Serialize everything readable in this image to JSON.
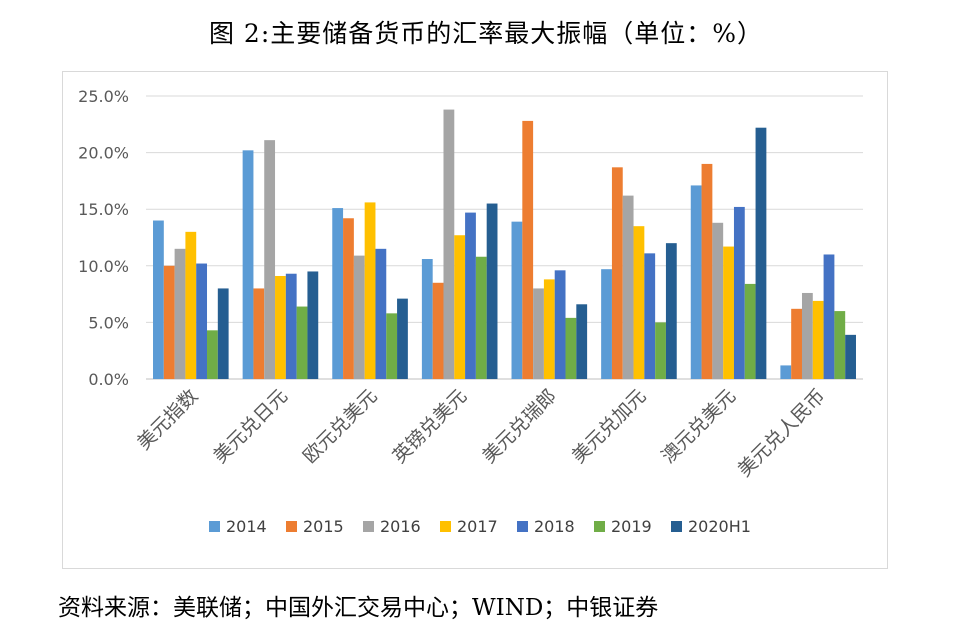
{
  "title": "图 2:主要储备货币的汇率最大振幅（单位：%）",
  "source": "资料来源：美联储；中国外汇交易中心；WIND；中银证券",
  "chart_data": {
    "type": "bar",
    "categories": [
      "美元指数",
      "美元兑日元",
      "欧元兑美元",
      "英镑兑美元",
      "美元兑瑞郎",
      "美元兑加元",
      "澳元兑美元",
      "美元兑人民币"
    ],
    "series": [
      {
        "name": "2014",
        "color": "#5b9bd5",
        "values": [
          14.0,
          20.2,
          15.1,
          10.6,
          13.9,
          9.7,
          17.1,
          1.2
        ]
      },
      {
        "name": "2015",
        "color": "#ed7d31",
        "values": [
          10.0,
          8.0,
          14.2,
          8.5,
          22.8,
          18.7,
          19.0,
          6.2
        ]
      },
      {
        "name": "2016",
        "color": "#a5a5a5",
        "values": [
          11.5,
          21.1,
          10.9,
          23.8,
          8.0,
          16.2,
          13.8,
          7.6
        ]
      },
      {
        "name": "2017",
        "color": "#ffc000",
        "values": [
          13.0,
          9.1,
          15.6,
          12.7,
          8.8,
          13.5,
          11.7,
          6.9
        ]
      },
      {
        "name": "2018",
        "color": "#4472c4",
        "values": [
          10.2,
          9.3,
          11.5,
          14.7,
          9.6,
          11.1,
          15.2,
          11.0
        ]
      },
      {
        "name": "2019",
        "color": "#70ad47",
        "values": [
          4.3,
          6.4,
          5.8,
          10.8,
          5.4,
          5.0,
          8.4,
          6.0
        ]
      },
      {
        "name": "2020H1",
        "color": "#255e91",
        "values": [
          8.0,
          9.5,
          7.1,
          15.5,
          6.6,
          12.0,
          22.2,
          3.9
        ]
      }
    ],
    "yticks": [
      "0.0%",
      "5.0%",
      "10.0%",
      "15.0%",
      "20.0%",
      "25.0%"
    ],
    "ylim": [
      0,
      25
    ],
    "grid": true,
    "legend": "bottom"
  }
}
